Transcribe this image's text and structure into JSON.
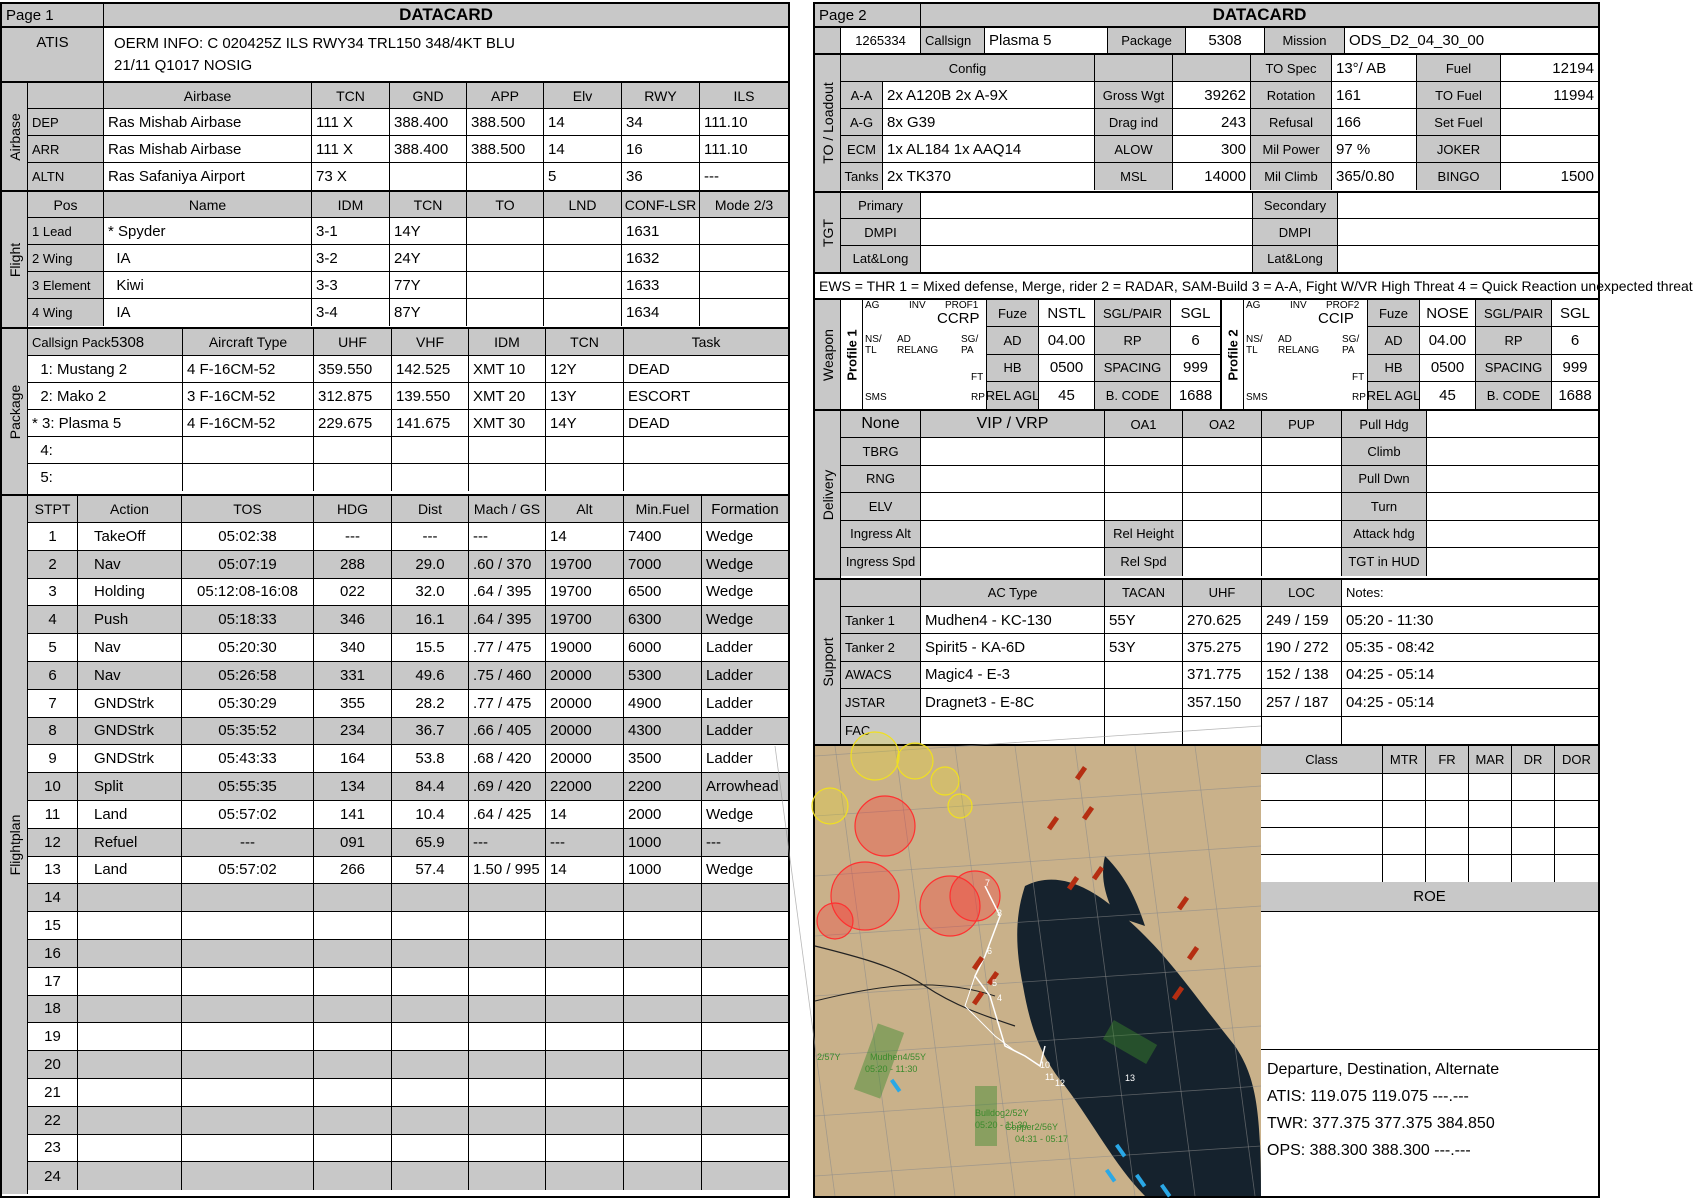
{
  "page1": {
    "page_label": "Page 1",
    "title": "DATACARD",
    "atis": {
      "label": "ATIS",
      "line1": "OERM INFO: C 020425Z ILS RWY34 TRL150 348/4KT BLU",
      "line2": "21/11 Q1017  NOSIG"
    },
    "airbase": {
      "section_label": "Airbase",
      "headers": [
        "",
        "Airbase",
        "TCN",
        "GND",
        "APP",
        "Elv",
        "RWY",
        "ILS"
      ],
      "rows": [
        [
          "DEP",
          "Ras Mishab Airbase",
          "111 X",
          "388.400",
          "388.500",
          "14",
          "34",
          "111.10"
        ],
        [
          "ARR",
          "Ras Mishab Airbase",
          "111 X",
          "388.400",
          "388.500",
          "14",
          "16",
          "111.10"
        ],
        [
          "ALTN",
          "Ras Safaniya Airport",
          "73 X",
          "",
          "",
          "5",
          "36",
          "---"
        ]
      ]
    },
    "flight": {
      "section_label": "Flight",
      "headers": [
        "Pos",
        "Name",
        "IDM",
        "TCN",
        "TO",
        "LND",
        "CONF-LSR",
        "Mode 2/3"
      ],
      "rows": [
        [
          "1 Lead",
          "* Spyder",
          "3-1",
          "14Y",
          "",
          "",
          "1631",
          ""
        ],
        [
          "2 Wing",
          "  IA",
          "3-2",
          "24Y",
          "",
          "",
          "1632",
          ""
        ],
        [
          "3 Element",
          "  Kiwi",
          "3-3",
          "77Y",
          "",
          "",
          "1633",
          ""
        ],
        [
          "4 Wing",
          "  IA",
          "3-4",
          "87Y",
          "",
          "",
          "1634",
          ""
        ]
      ]
    },
    "package": {
      "section_label": "Package",
      "callsign_pack_label": "Callsign Pack",
      "callsign_pack_value": "5308",
      "headers": [
        "Aircraft Type",
        "UHF",
        "VHF",
        "IDM",
        "TCN",
        "Task"
      ],
      "rows": [
        [
          "  1: Mustang 2",
          "4 F-16CM-52",
          "359.550",
          "142.525",
          "XMT 10",
          "12Y",
          "DEAD"
        ],
        [
          "  2: Mako 2",
          "3 F-16CM-52",
          "312.875",
          "139.550",
          "XMT 20",
          "13Y",
          "ESCORT"
        ],
        [
          "* 3: Plasma 5",
          "4 F-16CM-52",
          "229.675",
          "141.675",
          "XMT 30",
          "14Y",
          "DEAD"
        ],
        [
          "  4:",
          "",
          "",
          "",
          "",
          "",
          ""
        ],
        [
          "  5:",
          "",
          "",
          "",
          "",
          "",
          ""
        ]
      ]
    },
    "flightplan": {
      "section_label": "Flightplan",
      "headers": [
        "STPT",
        "Action",
        "TOS",
        "HDG",
        "Dist",
        "Mach / GS",
        "Alt",
        "Min.Fuel",
        "Formation"
      ],
      "rows": [
        [
          "1",
          "TakeOff",
          "05:02:38",
          "---",
          "---",
          "---",
          "14",
          "7400",
          "Wedge"
        ],
        [
          "2",
          "Nav",
          "05:07:19",
          "288",
          "29.0",
          ".60 / 370",
          "19700",
          "7000",
          "Wedge"
        ],
        [
          "3",
          "Holding",
          "05:12:08-16:08",
          "022",
          "32.0",
          ".64 / 395",
          "19700",
          "6500",
          "Wedge"
        ],
        [
          "4",
          "Push",
          "05:18:33",
          "346",
          "16.1",
          ".64 / 395",
          "19700",
          "6300",
          "Wedge"
        ],
        [
          "5",
          "Nav",
          "05:20:30",
          "340",
          "15.5",
          ".77 / 475",
          "19000",
          "6000",
          "Ladder"
        ],
        [
          "6",
          "Nav",
          "05:26:58",
          "331",
          "49.6",
          ".75 / 460",
          "20000",
          "5300",
          "Ladder"
        ],
        [
          "7",
          "GNDStrk",
          "05:30:29",
          "355",
          "28.2",
          ".77 / 475",
          "20000",
          "4900",
          "Ladder"
        ],
        [
          "8",
          "GNDStrk",
          "05:35:52",
          "234",
          "36.7",
          ".66 / 405",
          "20000",
          "4300",
          "Ladder"
        ],
        [
          "9",
          "GNDStrk",
          "05:43:33",
          "164",
          "53.8",
          ".68 / 420",
          "20000",
          "3500",
          "Ladder"
        ],
        [
          "10",
          "Split",
          "05:55:35",
          "134",
          "84.4",
          ".69 / 420",
          "22000",
          "2200",
          "Arrowhead"
        ],
        [
          "11",
          "Land",
          "05:57:02",
          "141",
          "10.4",
          ".64 / 425",
          "14",
          "2000",
          "Wedge"
        ],
        [
          "12",
          "Refuel",
          "---",
          "091",
          "65.9",
          "---",
          "---",
          "1000",
          "---"
        ],
        [
          "13",
          "Land",
          "05:57:02",
          "266",
          "57.4",
          "1.50 / 995",
          "14",
          "1000",
          "Wedge"
        ],
        [
          "14",
          "",
          "",
          "",
          "",
          "",
          "",
          "",
          ""
        ],
        [
          "15",
          "",
          "",
          "",
          "",
          "",
          "",
          "",
          ""
        ],
        [
          "16",
          "",
          "",
          "",
          "",
          "",
          "",
          "",
          ""
        ],
        [
          "17",
          "",
          "",
          "",
          "",
          "",
          "",
          "",
          ""
        ],
        [
          "18",
          "",
          "",
          "",
          "",
          "",
          "",
          "",
          ""
        ],
        [
          "19",
          "",
          "",
          "",
          "",
          "",
          "",
          "",
          ""
        ],
        [
          "20",
          "",
          "",
          "",
          "",
          "",
          "",
          "",
          ""
        ],
        [
          "21",
          "",
          "",
          "",
          "",
          "",
          "",
          "",
          ""
        ],
        [
          "22",
          "",
          "",
          "",
          "",
          "",
          "",
          "",
          ""
        ],
        [
          "23",
          "",
          "",
          "",
          "",
          "",
          "",
          "",
          ""
        ],
        [
          "24",
          "",
          "",
          "",
          "",
          "",
          "",
          "",
          ""
        ]
      ]
    }
  },
  "page2": {
    "page_label": "Page 2",
    "title": "DATACARD",
    "top": {
      "id": "1265334",
      "callsign_label": "Callsign",
      "callsign": "Plasma 5",
      "package_label": "Package",
      "package": "5308",
      "mission_label": "Mission",
      "mission": "ODS_D2_04_30_00"
    },
    "loadout": {
      "section_label": "TO / Loadout",
      "config_label": "Config",
      "rows": [
        {
          "k": "A-A",
          "v": "2x A120B 2x A-9X",
          "k2": "Gross Wgt",
          "v2": "39262",
          "k3": "Rotation",
          "v3": "161",
          "k4": "TO Fuel",
          "v4": "11994"
        },
        {
          "k": "A-G",
          "v": "8x G39",
          "k2": "Drag ind",
          "v2": "243",
          "k3": "Refusal",
          "v3": "166",
          "k4": "Set Fuel",
          "v4": ""
        },
        {
          "k": "ECM",
          "v": "1x AL184 1x AAQ14",
          "k2": "ALOW",
          "v2": "300",
          "k3": "Mil Power",
          "v3": "97 %",
          "k4": "JOKER",
          "v4": ""
        },
        {
          "k": "Tanks",
          "v": "2x TK370",
          "k2": "MSL",
          "v2": "14000",
          "k3": "Mil Climb",
          "v3": "365/0.80",
          "k4": "BINGO",
          "v4": "1500"
        }
      ],
      "to_spec_label": "TO Spec",
      "to_spec": "13°/ AB",
      "fuel_label": "Fuel",
      "fuel": "12194"
    },
    "tgt": {
      "section_label": "TGT",
      "rows": [
        "Primary",
        "DMPI",
        "Lat&Long"
      ],
      "rows2": [
        "Secondary",
        "DMPI",
        "Lat&Long"
      ]
    },
    "ews": "EWS = THR 1 = Mixed defense, Merge, rider 2 = RADAR, SAM-Build 3 = A-A, Fight W/VR High Threat 4 = Quick Reaction unexpected threat",
    "weapon": {
      "section_label": "Weapon",
      "p1": {
        "label": "Profile 1",
        "prof": "PROF1",
        "mode": "CCRP",
        "fuze_label": "Fuze",
        "fuze": "NSTL",
        "sgl_label": "SGL/PAIR",
        "sgl": "SGL",
        "ad_label": "AD",
        "ad": "04.00",
        "rp_label": "RP",
        "rp": "6",
        "hb_label": "HB",
        "hb": "0500",
        "sp_label": "SPACING",
        "sp": "999",
        "ra_label": "REL AGL",
        "ra": "45",
        "bc_label": "B. CODE",
        "bc": "1688"
      },
      "p2": {
        "label": "Profile 2",
        "prof": "PROF2",
        "mode": "CCIP",
        "fuze_label": "Fuze",
        "fuze": "NOSE",
        "sgl_label": "SGL/PAIR",
        "sgl": "SGL",
        "ad_label": "AD",
        "ad": "04.00",
        "rp_label": "RP",
        "rp": "6",
        "hb_label": "HB",
        "hb": "0500",
        "sp_label": "SPACING",
        "sp": "999",
        "ra_label": "REL AGL",
        "ra": "45",
        "bc_label": "B. CODE",
        "bc": "1688"
      },
      "mfd_labels": {
        "ag": "AG",
        "inv": "INV",
        "ns": "NS/",
        "tl": "TL",
        "ad": "AD",
        "relang": "RELANG",
        "sg": "SG/",
        "pa": "PA",
        "ft": "FT",
        "sms": "SMS",
        "rp": "RP"
      }
    },
    "delivery": {
      "section_label": "Delivery",
      "none_label": "None",
      "vip_label": "VIP / VRP",
      "oa1": "OA1",
      "oa2": "OA2",
      "pup": "PUP",
      "left_rows": [
        "TBRG",
        "RNG",
        "ELV"
      ],
      "right_rows": [
        "Pull Hdg",
        "Climb",
        "Pull Dwn",
        "Turn",
        "Attack hdg",
        "TGT in HUD"
      ],
      "ingress_alt": "Ingress Alt",
      "ingress_spd": "Ingress Spd",
      "rel_height": "Rel Height",
      "rel_spd": "Rel Spd"
    },
    "support": {
      "section_label": "Support",
      "headers": [
        "",
        "AC Type",
        "TACAN",
        "UHF",
        "LOC",
        "Notes:"
      ],
      "rows": [
        [
          "Tanker 1",
          "Mudhen4 - KC-130",
          "55Y",
          "270.625",
          "249 / 159",
          "05:20 - 11:30"
        ],
        [
          "Tanker 2",
          "Spirit5 - KA-6D",
          "53Y",
          "375.275",
          "190 / 272",
          "05:35 - 08:42"
        ],
        [
          "AWACS",
          "Magic4 - E-3",
          "",
          "371.775",
          "152 / 138",
          "04:25 - 05:14"
        ],
        [
          "JSTAR",
          "Dragnet3 - E-8C",
          "",
          "357.150",
          "257 / 187",
          "04:25 - 05:14"
        ],
        [
          "FAC",
          "",
          "",
          "",
          "",
          ""
        ]
      ]
    },
    "threat_table": {
      "headers": [
        "Class",
        "MTR",
        "FR",
        "MAR",
        "DR",
        "DOR"
      ],
      "rows": 4
    },
    "roe_label": "ROE",
    "comms": {
      "title": "Departure, Destination, Alternate",
      "atis": "ATIS: 119.075  119.075  ---.---",
      "twr": "TWR: 377.375  377.375  384.850",
      "ops": "OPS: 388.300  388.300  ---.---"
    },
    "map": {
      "labels": [
        "2/57Y",
        "Mudhen4/55Y",
        "05:20 - 11:30",
        "Bulldog2/52Y",
        "05:20 - 11:30",
        "Copper2/56Y",
        "04:31 - 05:17"
      ],
      "waypoints": [
        "3",
        "4",
        "5",
        "6",
        "7",
        "10",
        "11",
        "12",
        "13"
      ],
      "colors": {
        "land": "#c9b18a",
        "sea": "#15222d",
        "sam": "#ff3030",
        "aaa": "#f0e020",
        "route": "#ffffff",
        "tanker": "#3b8a2c"
      }
    }
  }
}
